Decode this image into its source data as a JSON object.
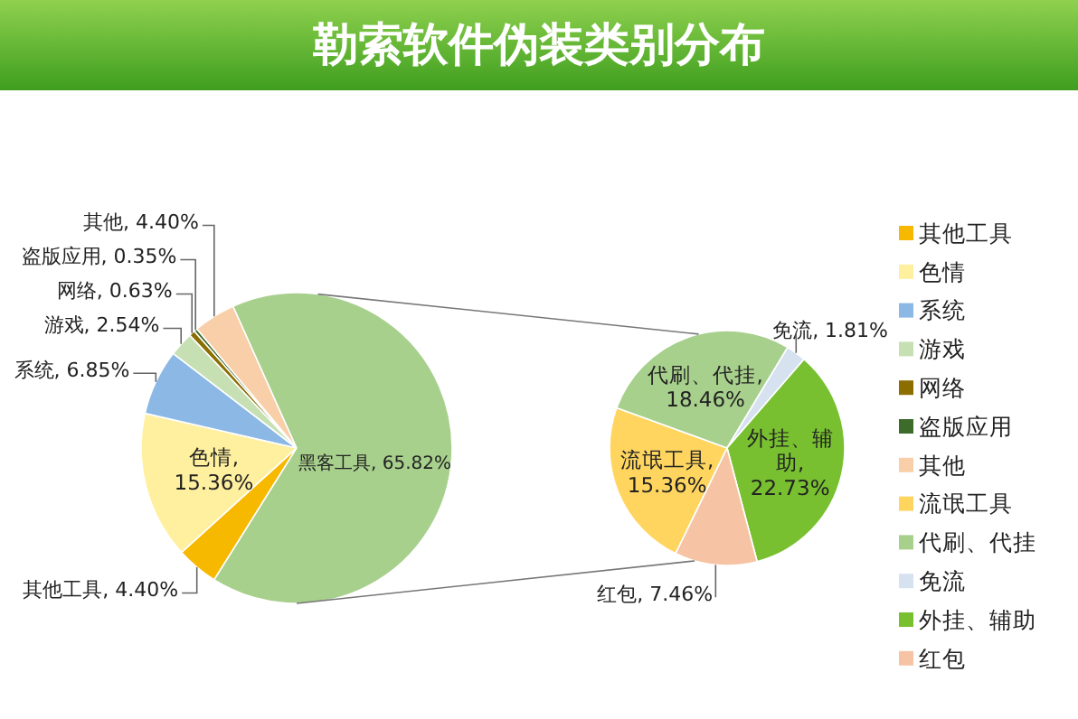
{
  "chart_data": [
    {
      "type": "pie",
      "title": "勒索软件伪装类别分布",
      "legend": "right",
      "categories": [
        "其他工具",
        "色情",
        "系统",
        "游戏",
        "网络",
        "盗版应用",
        "其他",
        null
      ],
      "values": [
        4.4,
        15.36,
        6.85,
        2.54,
        0.63,
        0.35,
        4.4,
        65.82
      ],
      "colors": [
        "#f7b800",
        "#fff0a0",
        "#8cb8e6",
        "#c6e0b4",
        "#8c6d00",
        "#3d6b2a",
        "#f8cfa8",
        "#a8d08d"
      ],
      "value_labels": [
        "其他工具, 4.40%",
        "色情, 15.36%",
        "系统, 6.85%",
        "游戏, 2.54%",
        "网络, 0.63%",
        "盗版应用, 0.35%",
        "其他, 4.40%",
        "黑客工具, 65.82%"
      ]
    },
    {
      "type": "pie",
      "legend": "right",
      "categories": [
        "流氓工具",
        "代刷、代挂",
        "免流",
        "外挂、辅助",
        "红包"
      ],
      "values": [
        15.36,
        18.46,
        1.81,
        22.73,
        7.46
      ],
      "colors": [
        "#ffd560",
        "#a8d08d",
        "#d6e2f0",
        "#78c030",
        "#f6c4a4"
      ],
      "value_labels": [
        "流氓工具, 15.36%",
        "代刷、代挂, 18.46%",
        "免流, 1.81%",
        "外挂、辅助, 22.73%",
        "红包, 7.46%"
      ]
    }
  ]
}
